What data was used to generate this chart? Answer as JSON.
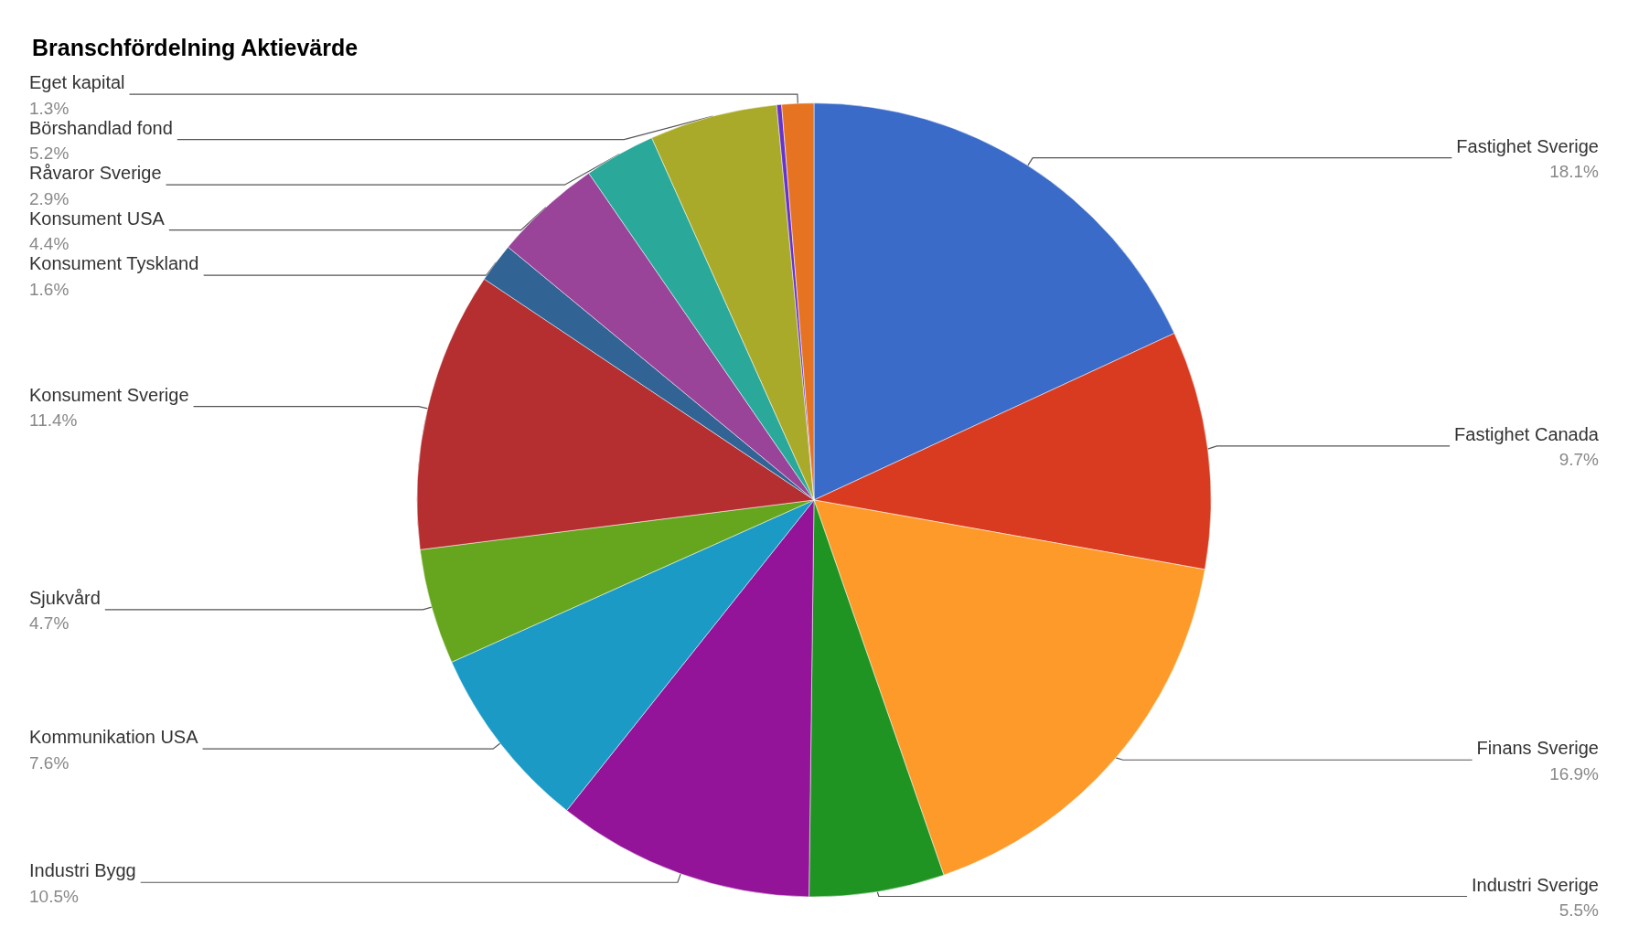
{
  "chart_data": {
    "type": "pie",
    "title": "Branschfördelning Aktievärde",
    "categories": [
      "Fastighet Sverige",
      "Fastighet Canada",
      "Finans Sverige",
      "Industri Sverige",
      "Industri Bygg",
      "Kommunikation USA",
      "Sjukvård",
      "Konsument Sverige",
      "Konsument Tyskland",
      "Konsument USA",
      "Råvaror Sverige",
      "Börshandlad fond",
      null,
      "Eget kapital"
    ],
    "values": [
      18.1,
      9.7,
      16.9,
      5.5,
      10.5,
      7.6,
      4.7,
      11.4,
      1.6,
      4.4,
      2.9,
      5.2,
      0.2,
      1.3
    ],
    "value_labels": [
      "18.1%",
      "9.7%",
      "16.9%",
      "5.5%",
      "10.5%",
      "7.6%",
      "4.7%",
      "11.4%",
      "1.6%",
      "4.4%",
      "2.9%",
      "5.2%",
      null,
      "1.3%"
    ],
    "colors": [
      "#3a6bc9",
      "#d93b21",
      "#fd9a2a",
      "#1f9423",
      "#941499",
      "#1b9ac6",
      "#66a61e",
      "#b52e30",
      "#316395",
      "#994499",
      "#2aa99b",
      "#aaaa2a",
      "#6633cc",
      "#e67321"
    ],
    "legend": false
  }
}
